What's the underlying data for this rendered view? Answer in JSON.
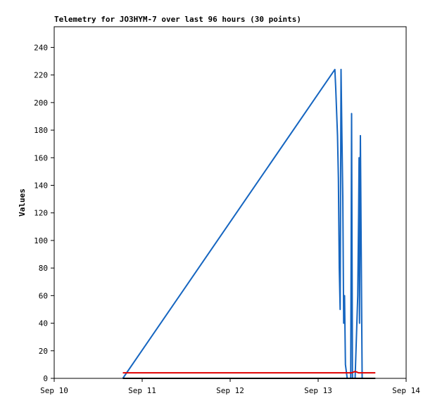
{
  "chart_data": {
    "type": "line",
    "title": "Telemetry for JO3HYM-7 over last 96 hours (30 points)",
    "ylabel": "Values",
    "xlim": [
      0,
      4
    ],
    "xticks": [
      {
        "value": 0,
        "label": "Sep 10"
      },
      {
        "value": 1,
        "label": "Sep 11"
      },
      {
        "value": 2,
        "label": "Sep 12"
      },
      {
        "value": 3,
        "label": "Sep 13"
      },
      {
        "value": 4,
        "label": "Sep 14"
      }
    ],
    "ylim": [
      0,
      255
    ],
    "yticks": [
      0,
      20,
      40,
      60,
      80,
      100,
      120,
      140,
      160,
      180,
      200,
      220,
      240
    ],
    "series": [
      {
        "color": "#1565c0",
        "x": [
          0.78,
          3.19,
          3.2,
          3.22,
          3.23,
          3.24,
          3.25,
          3.26,
          3.27,
          3.28,
          3.29,
          3.3,
          3.31,
          3.33,
          3.37,
          3.38,
          3.39,
          3.42,
          3.45,
          3.46,
          3.465,
          3.47,
          3.48,
          3.49,
          3.5
        ],
        "values": [
          0,
          224,
          210,
          176,
          145,
          80,
          50,
          224,
          176,
          132,
          40,
          60,
          10,
          0,
          0,
          192,
          0,
          0,
          60,
          120,
          160,
          40,
          176,
          88,
          0
        ]
      },
      {
        "color": "#e00000",
        "x": [
          0.78,
          3.38,
          3.42,
          3.46,
          3.65
        ],
        "values": [
          4,
          4,
          5,
          4,
          4
        ]
      },
      {
        "color": "#000000",
        "x": [
          0.78,
          3.65
        ],
        "values": [
          0,
          0
        ]
      }
    ]
  }
}
